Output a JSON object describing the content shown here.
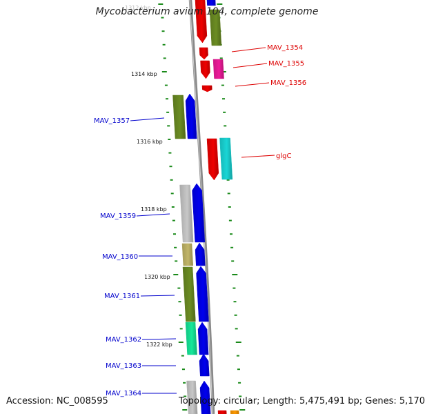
{
  "title": "Mycobacterium avium 104, complete genome",
  "footer": {
    "accession": "Accession: NC_008595",
    "stats": "Topology: circular; Length: 5,475,491 bp; Genes: 5,170"
  },
  "colors": {
    "red": "#ee0000",
    "blue": "#0000ee",
    "olive": "#6b8c23",
    "magenta": "#ee1a9a",
    "cyan": "#1ad6d6",
    "grey": "#c8c8c8",
    "khaki": "#c2b668",
    "green": "#16e89a",
    "orange": "#ff9900",
    "tick": "#1a8a1a",
    "label_red": "#dd0000",
    "label_blue": "#0000cc"
  },
  "tick_labels": [
    {
      "id": "1312",
      "text": "1312 kbp"
    },
    {
      "id": "1314",
      "text": "1314 kbp"
    },
    {
      "id": "1316",
      "text": "1316 kbp"
    },
    {
      "id": "1318",
      "text": "1318 kbp"
    },
    {
      "id": "1320",
      "text": "1320 kbp"
    },
    {
      "id": "1322",
      "text": "1322 kbp"
    }
  ],
  "gene_labels": [
    {
      "id": "mav1354",
      "text": "MAV_1354",
      "color": "red"
    },
    {
      "id": "mav1355",
      "text": "MAV_1355",
      "color": "red"
    },
    {
      "id": "mav1356",
      "text": "MAV_1356",
      "color": "red"
    },
    {
      "id": "mav1357",
      "text": "MAV_1357",
      "color": "blue"
    },
    {
      "id": "glgc",
      "text": "glgC",
      "color": "red"
    },
    {
      "id": "mav1359",
      "text": "MAV_1359",
      "color": "blue"
    },
    {
      "id": "mav1360",
      "text": "MAV_1360",
      "color": "blue"
    },
    {
      "id": "mav1361",
      "text": "MAV_1361",
      "color": "blue"
    },
    {
      "id": "mav1362",
      "text": "MAV_1362",
      "color": "blue"
    },
    {
      "id": "mav1363",
      "text": "MAV_1363",
      "color": "blue"
    },
    {
      "id": "mav1364",
      "text": "MAV_1364",
      "color": "blue"
    }
  ]
}
